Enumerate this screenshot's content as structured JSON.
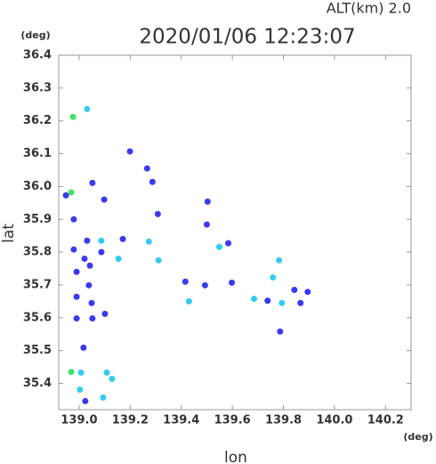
{
  "chart_data": {
    "type": "scatter",
    "header": "ALT(km)  2.0",
    "title": "2020/01/06 12:23:07",
    "y_unit": "(deg)",
    "x_unit": "(deg)",
    "xlabel": "lon",
    "ylabel": "lat",
    "xlim": [
      138.92,
      140.3
    ],
    "ylim": [
      35.32,
      36.4
    ],
    "xticks": [
      {
        "value": 139,
        "label": "139.0"
      },
      139.2,
      139.4,
      139.6,
      139.8,
      {
        "value": 140,
        "label": "140.0"
      },
      140.2
    ],
    "yticks": [
      35.4,
      35.5,
      35.6,
      35.7,
      35.8,
      35.9,
      {
        "value": 36,
        "label": "36.0"
      },
      36.1,
      36.2,
      36.3,
      36.4
    ],
    "x": [
      138.976,
      139.031,
      138.948,
      138.969,
      139.052,
      139.098,
      138.979,
      139.031,
      138.979,
      139.021,
      139.042,
      138.99,
      138.99,
      139.038,
      139.049,
      138.99,
      139.052,
      139.101,
      139.017,
      138.969,
      139.007,
      139.003,
      139.108,
      139.129,
      139.094,
      139.024,
      139.199,
      139.266,
      139.287,
      139.308,
      139.503,
      139.5,
      139.584,
      139.549,
      139.273,
      139.171,
      139.087,
      139.087,
      139.154,
      139.311,
      139.416,
      139.493,
      139.43,
      139.598,
      139.685,
      139.738,
      139.783,
      139.759,
      139.794,
      139.843,
      139.895,
      139.867,
      139.787
    ],
    "y": [
      36.212,
      36.236,
      35.973,
      35.982,
      36.011,
      35.96,
      35.9,
      35.835,
      35.808,
      35.78,
      35.759,
      35.74,
      35.664,
      35.699,
      35.645,
      35.598,
      35.598,
      35.612,
      35.509,
      35.435,
      35.433,
      35.381,
      35.433,
      35.414,
      35.357,
      35.346,
      36.107,
      36.055,
      36.014,
      35.916,
      35.954,
      35.884,
      35.827,
      35.816,
      35.832,
      35.84,
      35.835,
      35.8,
      35.78,
      35.775,
      35.71,
      35.699,
      35.65,
      35.707,
      35.658,
      35.652,
      35.775,
      35.723,
      35.645,
      35.685,
      35.679,
      35.645,
      35.558
    ],
    "colors": [
      "#44e066",
      "#33ccee",
      "#3a3af0",
      "#44e066",
      "#3a3af0",
      "#3a3af0",
      "#3a3af0",
      "#3a3af0",
      "#3a3af0",
      "#3a3af0",
      "#3a3af0",
      "#3a3af0",
      "#3a3af0",
      "#3a3af0",
      "#3a3af0",
      "#3a3af0",
      "#3a3af0",
      "#3a3af0",
      "#3a3af0",
      "#44e066",
      "#33ccee",
      "#33ccee",
      "#33ccee",
      "#33ccee",
      "#33ccee",
      "#3a3af0",
      "#3a3af0",
      "#3a3af0",
      "#3a3af0",
      "#3a3af0",
      "#3a3af0",
      "#3a3af0",
      "#3a3af0",
      "#33ccee",
      "#33ccee",
      "#3a3af0",
      "#33ccee",
      "#3a3af0",
      "#33ccee",
      "#33ccee",
      "#3a3af0",
      "#3a3af0",
      "#33ccee",
      "#3a3af0",
      "#33ccee",
      "#3a3af0",
      "#33ccee",
      "#33ccee",
      "#33ccee",
      "#3a3af0",
      "#3a3af0",
      "#3a3af0",
      "#3a3af0"
    ]
  }
}
